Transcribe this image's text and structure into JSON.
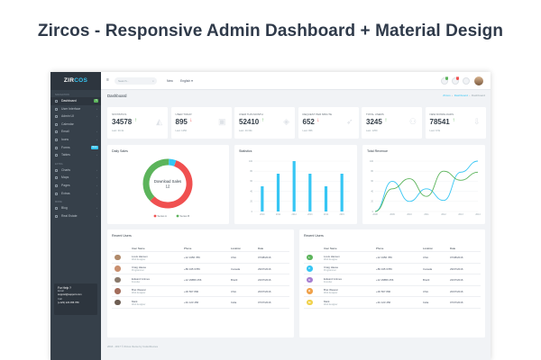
{
  "promo_title": "Zircos - Responsive Admin Dashboard + Material Design",
  "brand": {
    "name_a": "ZIR",
    "name_b": "COS"
  },
  "sidebar": {
    "sections": [
      {
        "label": "Navigation",
        "items": [
          {
            "label": "Dashboard",
            "icon": "dashboard-icon",
            "badge": "3",
            "badge_color": "#5cb45b"
          },
          {
            "label": "User Interface",
            "icon": "layers-icon",
            "chevron": "›"
          },
          {
            "label": "Admin UI",
            "icon": "box-icon",
            "chevron": "›"
          },
          {
            "label": "Calendar",
            "icon": "calendar-icon"
          },
          {
            "label": "Email",
            "icon": "mail-icon",
            "chevron": "›"
          },
          {
            "label": "Icons",
            "icon": "heart-icon",
            "chevron": "›"
          },
          {
            "label": "Forms",
            "icon": "form-icon",
            "badge": "New",
            "badge_color": "#36c6f4"
          },
          {
            "label": "Tables",
            "icon": "table-icon",
            "chevron": "›"
          }
        ]
      },
      {
        "label": "Extra",
        "items": [
          {
            "label": "Charts",
            "icon": "chart-icon",
            "chevron": "›"
          },
          {
            "label": "Maps",
            "icon": "map-icon",
            "chevron": "›"
          },
          {
            "label": "Pages",
            "icon": "page-icon",
            "chevron": "›"
          },
          {
            "label": "Extras",
            "icon": "star-icon",
            "chevron": "›"
          }
        ]
      },
      {
        "label": "More",
        "items": [
          {
            "label": "Blog",
            "icon": "blog-icon",
            "chevron": "›"
          },
          {
            "label": "Real Estate",
            "icon": "home-icon",
            "chevron": "›"
          }
        ]
      }
    ],
    "help": {
      "title": "For Help ?",
      "email_label": "Email",
      "email": "support@support.com",
      "call_label": "Call",
      "phone": "(+123) 123 456 789"
    }
  },
  "topbar": {
    "search_placeholder": "Search...",
    "nav": [
      "New",
      "English"
    ],
    "dropdown_caret": "▾",
    "notif_badges": [
      "9",
      "3"
    ],
    "colors": {
      "badge_green": "#5cb45b",
      "badge_red": "#f05050"
    }
  },
  "page": {
    "title": "Dashboard",
    "breadcrumb": [
      "Zircos",
      "Dashboard",
      "Dashboard"
    ],
    "footer": "2016 - 2017 © Zircos theme by Coderthemes"
  },
  "stats": [
    {
      "label": "Statistics",
      "value": "34578",
      "trend": "↑",
      "trend_color": "#5cb45b",
      "last": "Last: 30.4k",
      "icon": "area-chart-icon"
    },
    {
      "label": "User Today",
      "value": "895",
      "trend": "↓",
      "trend_color": "#f05050",
      "last": "Last: 1250",
      "icon": "briefcase-icon"
    },
    {
      "label": "User This Month",
      "value": "52410",
      "trend": "↑",
      "trend_color": "#5cb45b",
      "last": "Last: 40.33k",
      "icon": "layers-icon"
    },
    {
      "label": "Request Per Minute",
      "value": "652",
      "trend": "↓",
      "trend_color": "#f05050",
      "last": "Last: 956",
      "icon": "rocket-icon"
    },
    {
      "label": "Total Users",
      "value": "3245",
      "trend": "↑",
      "trend_color": "#5cb45b",
      "last": "Last: 1250",
      "icon": "users-icon"
    },
    {
      "label": "New Downloads",
      "value": "78541",
      "trend": "↑",
      "trend_color": "#5cb45b",
      "last": "Last: 9.5k",
      "icon": "download-icon"
    }
  ],
  "cards": {
    "daily_sales": "Daily Sales",
    "statistics": "Statistics",
    "total_revenue": "Total Revenue"
  },
  "chart_data": [
    {
      "type": "pie",
      "title": "Daily Sales",
      "center_label": "Download Sales",
      "center_value": "12",
      "slices": [
        {
          "name": "Series A",
          "value": 60,
          "color": "#f05050"
        },
        {
          "name": "Series B",
          "value": 40,
          "color": "#5cb45b"
        },
        {
          "name": "",
          "value": 5,
          "color": "#36c6f4"
        }
      ]
    },
    {
      "type": "bar",
      "title": "Statistics",
      "categories": [
        "2010",
        "2011",
        "2012",
        "2013",
        "2014",
        "2015"
      ],
      "values": [
        50,
        75,
        100,
        75,
        50,
        75
      ],
      "yticks": [
        0,
        20,
        40,
        60,
        80,
        100
      ],
      "ylim": [
        0,
        100
      ],
      "color": "#36c6f4"
    },
    {
      "type": "line",
      "title": "Total Revenue",
      "x": [
        "2008",
        "2009",
        "2010",
        "2011",
        "2012",
        "2013",
        "2014"
      ],
      "series": [
        {
          "name": "",
          "values": [
            0,
            60,
            20,
            45,
            22,
            78,
            100
          ],
          "color": "#36c6f4"
        },
        {
          "name": "",
          "values": [
            0,
            45,
            65,
            30,
            80,
            62,
            78
          ],
          "color": "#5cb45b"
        }
      ],
      "yticks": [
        0,
        20,
        40,
        60,
        80,
        100
      ],
      "ylim": [
        0,
        100
      ]
    }
  ],
  "recent_users_left": {
    "title": "Recent Users",
    "headers": [
      "User Name",
      "Phone",
      "Location",
      "Date"
    ],
    "rows": [
      {
        "name": "Louis Hansen",
        "role": "Web designer",
        "phone": "+12 3456 789",
        "location": "USA",
        "date": "07/08/2016",
        "avatar_color": "#b08a6a"
      },
      {
        "name": "Craig Hause",
        "role": "Programmer",
        "phone": "+89 345 6789",
        "location": "Canada",
        "date": "29/07/2016",
        "avatar_color": "#c98f6f"
      },
      {
        "name": "Edward Grimes",
        "role": "Founder",
        "phone": "+12 29856 256",
        "location": "Brazil",
        "date": "22/07/2016",
        "avatar_color": "#8a7a6c"
      },
      {
        "name": "Bret Weaver",
        "role": "Web designer",
        "phone": "+00 567 890",
        "location": "USA",
        "date": "20/07/2016",
        "avatar_color": "#a36d5c"
      },
      {
        "name": "Mark",
        "role": "Web designer",
        "phone": "+91 123 456",
        "location": "India",
        "date": "07/07/2016",
        "avatar_color": "#6d5d52"
      }
    ]
  },
  "recent_users_right": {
    "title": "Recent Users",
    "headers": [
      "User Name",
      "Phone",
      "Location",
      "Date"
    ],
    "rows": [
      {
        "letter": "L",
        "name": "Louis Hansen",
        "role": "Web designer",
        "phone": "+12 3456 789",
        "location": "USA",
        "date": "07/08/2016",
        "avatar_color": "#5cb45b"
      },
      {
        "letter": "C",
        "name": "Craig Hause",
        "role": "Programmer",
        "phone": "+89 345 6789",
        "location": "Canada",
        "date": "29/07/2016",
        "avatar_color": "#36c6f4"
      },
      {
        "letter": "E",
        "name": "Edward Grimes",
        "role": "Founder",
        "phone": "+12 29856 256",
        "location": "Brazil",
        "date": "22/07/2016",
        "avatar_color": "#a77fd1"
      },
      {
        "letter": "B",
        "name": "Bret Weaver",
        "role": "Web designer",
        "phone": "+00 567 890",
        "location": "USA",
        "date": "20/07/2016",
        "avatar_color": "#f0a14a"
      },
      {
        "letter": "M",
        "name": "Mark",
        "role": "Web designer",
        "phone": "+91 123 456",
        "location": "India",
        "date": "07/07/2016",
        "avatar_color": "#f0d14a"
      }
    ]
  }
}
